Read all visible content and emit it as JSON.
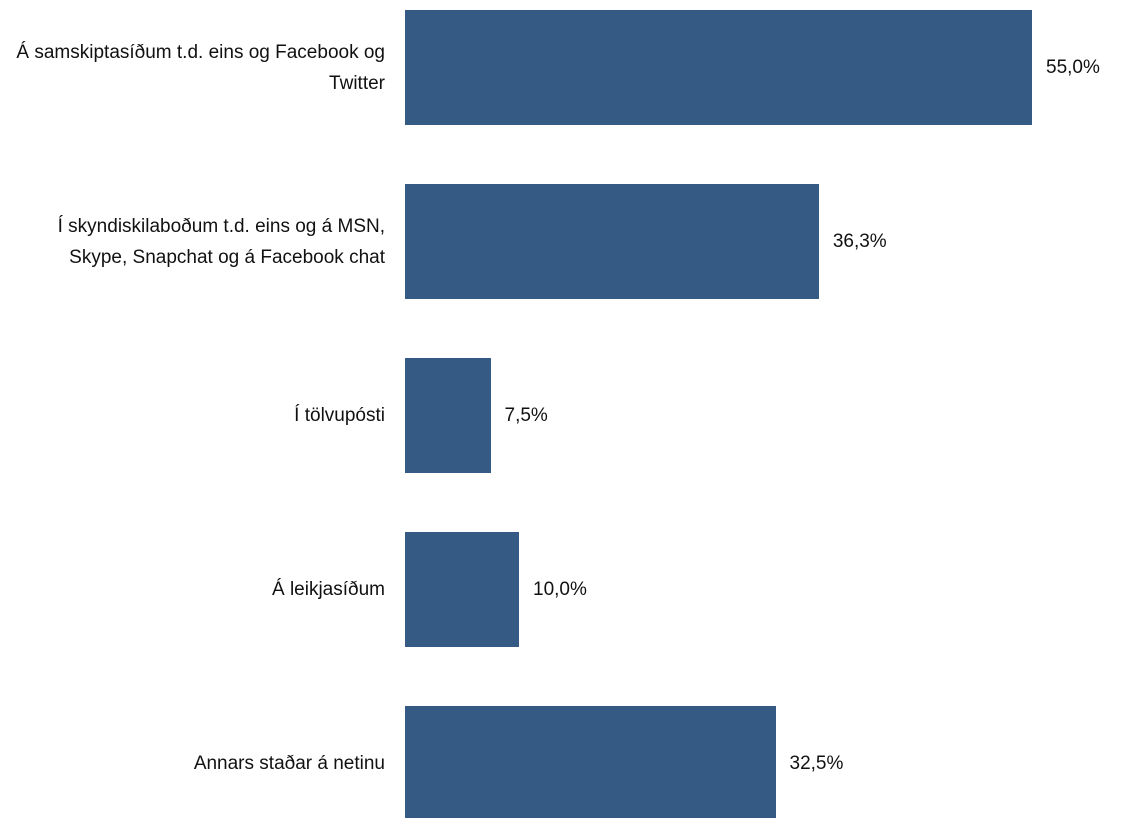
{
  "chart_data": {
    "type": "bar",
    "orientation": "horizontal",
    "categories": [
      "Á samskiptasíðum t.d. eins og Facebook og Twitter",
      "Í skyndiskilaboðum t.d. eins og á MSN, Skype, Snapchat og á Facebook chat",
      "Í tölvupósti",
      "Á leikjasíðum",
      "Annars staðar á netinu"
    ],
    "values": [
      55.0,
      36.3,
      7.5,
      10.0,
      32.5
    ],
    "value_labels": [
      "55,0%",
      "36,3%",
      "7,5%",
      "10,0%",
      "32,5%"
    ],
    "color": "#355a84"
  }
}
